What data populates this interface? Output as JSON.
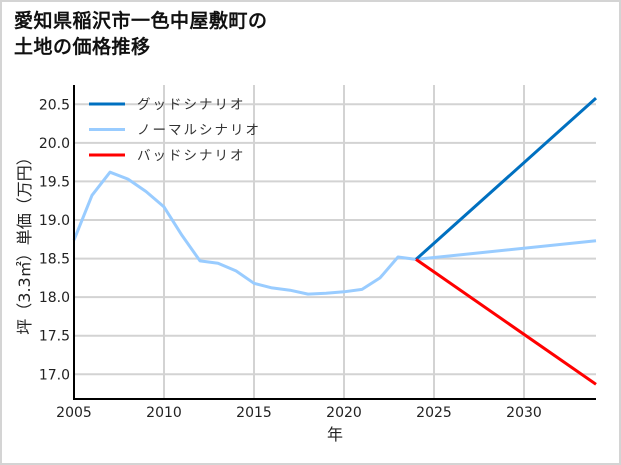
{
  "title_lines": [
    "愛知県稲沢市一色中屋敷町の",
    "土地の価格推移"
  ],
  "chart_data": {
    "type": "line",
    "title": "愛知県稲沢市一色中屋敷町の土地の価格推移",
    "xlabel": "年",
    "ylabel": "坪（3.3㎡）単価（万円）",
    "xlim": [
      2005,
      2034
    ],
    "ylim": [
      16.68,
      20.75
    ],
    "grid": true,
    "legend_position": "upper left",
    "x_ticks": [
      2005,
      2010,
      2015,
      2020,
      2025,
      2030
    ],
    "y_ticks": [
      17.0,
      17.5,
      18.0,
      18.5,
      19.0,
      19.5,
      20.0,
      20.5
    ],
    "series": [
      {
        "name": "グッドシナリオ",
        "color": "#0070c0",
        "x": [
          2024,
          2034
        ],
        "values": [
          18.49,
          20.58
        ]
      },
      {
        "name": "ノーマルシナリオ",
        "color": "#99ccff",
        "x": [
          2005,
          2006,
          2007,
          2008,
          2009,
          2010,
          2011,
          2012,
          2013,
          2014,
          2015,
          2016,
          2017,
          2018,
          2019,
          2020,
          2021,
          2022,
          2023,
          2024,
          2034
        ],
        "values": [
          18.74,
          19.32,
          19.62,
          19.53,
          19.37,
          19.17,
          18.8,
          18.47,
          18.44,
          18.34,
          18.18,
          18.12,
          18.09,
          18.04,
          18.05,
          18.07,
          18.1,
          18.25,
          18.52,
          18.49,
          18.73
        ]
      },
      {
        "name": "バッドシナリオ",
        "color": "#ff0000",
        "x": [
          2024,
          2034
        ],
        "values": [
          18.49,
          16.87
        ]
      }
    ]
  },
  "axis_text": {
    "x_ticks": [
      "2005",
      "2010",
      "2015",
      "2020",
      "2025",
      "2030"
    ],
    "y_ticks": [
      "17.0",
      "17.5",
      "18.0",
      "18.5",
      "19.0",
      "19.5",
      "20.0",
      "20.5"
    ],
    "xlabel": "年",
    "ylabel": "坪（3.3㎡）単価（万円）"
  },
  "legend": [
    {
      "label": "グッドシナリオ",
      "color": "#0070c0"
    },
    {
      "label": "ノーマルシナリオ",
      "color": "#99ccff"
    },
    {
      "label": "バッドシナリオ",
      "color": "#ff0000"
    }
  ]
}
